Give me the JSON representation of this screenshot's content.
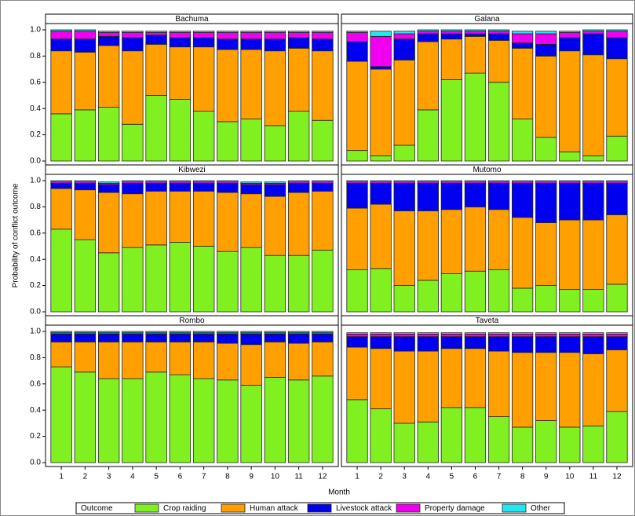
{
  "chart_data": {
    "type": "bar",
    "stacked": true,
    "y_label": "Probability of conflict outcome",
    "x_label": "Month",
    "legend_title": "Outcome",
    "categories": [
      "1",
      "2",
      "3",
      "4",
      "5",
      "6",
      "7",
      "8",
      "9",
      "10",
      "11",
      "12"
    ],
    "ylim": [
      0,
      1
    ],
    "yticks": [
      {
        "value": 0,
        "label": "0.0"
      },
      0.2,
      0.4,
      0.6,
      0.8,
      {
        "value": 1,
        "label": "1.0"
      }
    ],
    "series": [
      {
        "name": "Crop raiding",
        "color": "#80f020"
      },
      {
        "name": "Human attack",
        "color": "#ffa000"
      },
      {
        "name": "Livestock attack",
        "color": "#0000f0"
      },
      {
        "name": "Property damage",
        "color": "#f000f0"
      },
      {
        "name": "Other",
        "color": "#20e8f0"
      }
    ],
    "panels": [
      {
        "title": "Bachuma",
        "values": [
          [
            0.36,
            0.39,
            0.41,
            0.28,
            0.5,
            0.47,
            0.38,
            0.3,
            0.32,
            0.27,
            0.38,
            0.31
          ],
          [
            0.48,
            0.44,
            0.47,
            0.56,
            0.39,
            0.4,
            0.49,
            0.55,
            0.53,
            0.57,
            0.48,
            0.53
          ],
          [
            0.09,
            0.1,
            0.07,
            0.1,
            0.07,
            0.07,
            0.07,
            0.08,
            0.08,
            0.09,
            0.08,
            0.09
          ],
          [
            0.06,
            0.06,
            0.03,
            0.04,
            0.02,
            0.04,
            0.04,
            0.05,
            0.05,
            0.05,
            0.04,
            0.05
          ],
          [
            0.01,
            0.01,
            0.01,
            0.01,
            0.01,
            0.01,
            0.01,
            0.01,
            0.01,
            0.01,
            0.01,
            0.01
          ]
        ]
      },
      {
        "title": "Galana",
        "values": [
          [
            0.08,
            0.04,
            0.12,
            0.39,
            0.62,
            0.67,
            0.6,
            0.32,
            0.18,
            0.07,
            0.04,
            0.19
          ],
          [
            0.68,
            0.66,
            0.65,
            0.52,
            0.31,
            0.28,
            0.32,
            0.54,
            0.62,
            0.77,
            0.77,
            0.59
          ],
          [
            0.15,
            0.02,
            0.16,
            0.06,
            0.04,
            0.02,
            0.05,
            0.04,
            0.09,
            0.1,
            0.16,
            0.16
          ],
          [
            0.07,
            0.23,
            0.04,
            0.02,
            0.02,
            0.02,
            0.02,
            0.07,
            0.08,
            0.04,
            0.02,
            0.05
          ],
          [
            0.01,
            0.04,
            0.02,
            0.01,
            0.01,
            0.01,
            0.01,
            0.02,
            0.02,
            0.01,
            0.01,
            0.01
          ]
        ]
      },
      {
        "title": "Kibwezi",
        "values": [
          [
            0.63,
            0.55,
            0.45,
            0.49,
            0.51,
            0.53,
            0.5,
            0.46,
            0.49,
            0.43,
            0.43,
            0.47
          ],
          [
            0.31,
            0.38,
            0.46,
            0.41,
            0.41,
            0.39,
            0.42,
            0.45,
            0.41,
            0.45,
            0.48,
            0.45
          ],
          [
            0.04,
            0.05,
            0.06,
            0.08,
            0.06,
            0.06,
            0.06,
            0.07,
            0.07,
            0.09,
            0.07,
            0.06
          ],
          [
            0.01,
            0.01,
            0.01,
            0.01,
            0.01,
            0.01,
            0.01,
            0.01,
            0.01,
            0.01,
            0.01,
            0.01
          ],
          [
            0.01,
            0.01,
            0.01,
            0.01,
            0.01,
            0.01,
            0.01,
            0.01,
            0.01,
            0.01,
            0.01,
            0.01
          ]
        ]
      },
      {
        "title": "Mutomo",
        "values": [
          [
            0.32,
            0.33,
            0.2,
            0.24,
            0.29,
            0.31,
            0.32,
            0.18,
            0.2,
            0.17,
            0.17,
            0.21
          ],
          [
            0.47,
            0.49,
            0.57,
            0.53,
            0.49,
            0.49,
            0.46,
            0.54,
            0.48,
            0.53,
            0.53,
            0.53
          ],
          [
            0.19,
            0.16,
            0.21,
            0.21,
            0.2,
            0.18,
            0.2,
            0.26,
            0.3,
            0.28,
            0.28,
            0.24
          ],
          [
            0.01,
            0.01,
            0.01,
            0.01,
            0.01,
            0.01,
            0.01,
            0.01,
            0.01,
            0.01,
            0.01,
            0.01
          ],
          [
            0.01,
            0.01,
            0.01,
            0.01,
            0.01,
            0.01,
            0.01,
            0.01,
            0.01,
            0.01,
            0.01,
            0.01
          ]
        ]
      },
      {
        "title": "Rombo",
        "values": [
          [
            0.73,
            0.69,
            0.64,
            0.64,
            0.69,
            0.67,
            0.64,
            0.63,
            0.59,
            0.65,
            0.63,
            0.66
          ],
          [
            0.19,
            0.23,
            0.28,
            0.28,
            0.23,
            0.25,
            0.28,
            0.28,
            0.31,
            0.27,
            0.28,
            0.26
          ],
          [
            0.06,
            0.06,
            0.06,
            0.06,
            0.06,
            0.06,
            0.06,
            0.07,
            0.08,
            0.06,
            0.07,
            0.06
          ],
          [
            0.01,
            0.01,
            0.01,
            0.01,
            0.01,
            0.01,
            0.01,
            0.01,
            0.01,
            0.01,
            0.01,
            0.01
          ],
          [
            0.01,
            0.01,
            0.01,
            0.01,
            0.01,
            0.01,
            0.01,
            0.01,
            0.01,
            0.01,
            0.01,
            0.01
          ]
        ]
      },
      {
        "title": "Taveta",
        "values": [
          [
            0.48,
            0.41,
            0.3,
            0.31,
            0.42,
            0.42,
            0.35,
            0.27,
            0.32,
            0.27,
            0.28,
            0.39
          ],
          [
            0.4,
            0.46,
            0.55,
            0.54,
            0.45,
            0.45,
            0.5,
            0.57,
            0.52,
            0.57,
            0.55,
            0.47
          ],
          [
            0.08,
            0.09,
            0.11,
            0.11,
            0.09,
            0.09,
            0.11,
            0.12,
            0.12,
            0.12,
            0.13,
            0.1
          ],
          [
            0.02,
            0.02,
            0.02,
            0.02,
            0.02,
            0.02,
            0.02,
            0.02,
            0.02,
            0.02,
            0.02,
            0.02
          ],
          [
            0.01,
            0.01,
            0.01,
            0.01,
            0.01,
            0.01,
            0.01,
            0.01,
            0.01,
            0.01,
            0.01,
            0.01
          ]
        ]
      }
    ]
  }
}
